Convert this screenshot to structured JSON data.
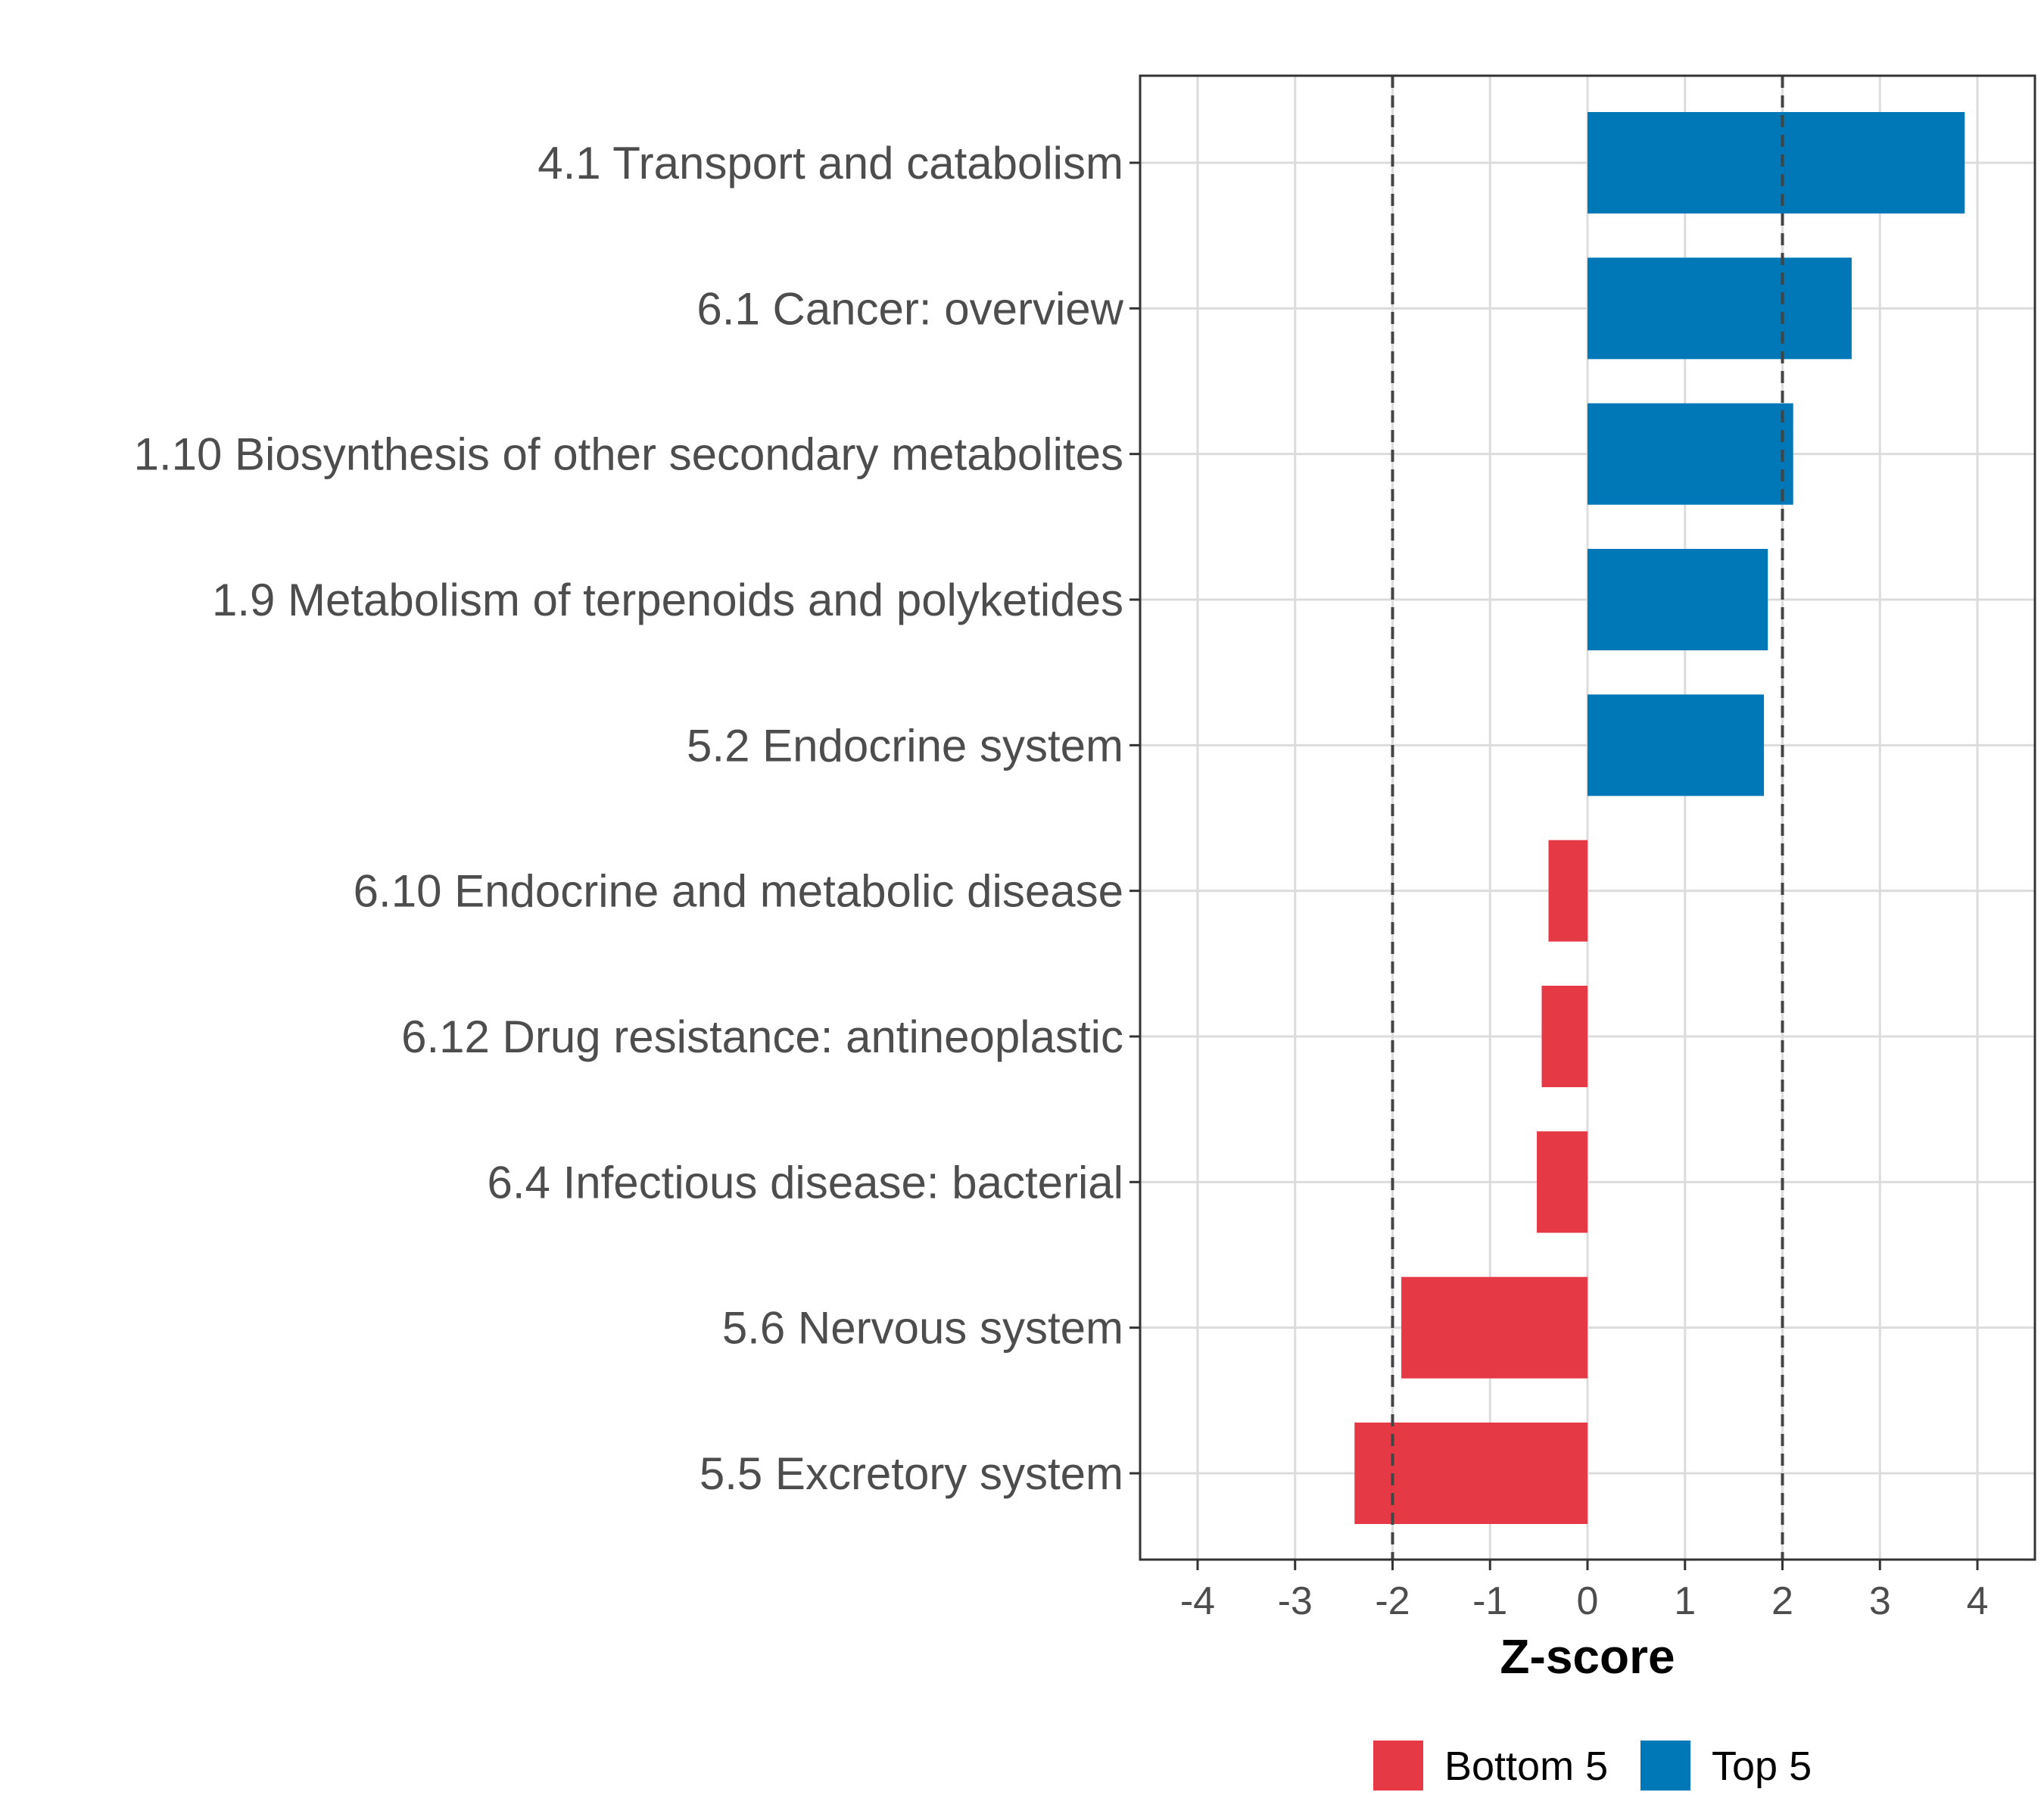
{
  "chart_data": {
    "type": "bar",
    "orientation": "horizontal",
    "title": "",
    "xlabel": "Z-score",
    "ylabel": "",
    "xlim": [
      -4.59,
      4.59
    ],
    "xticks": [
      -4,
      -3,
      -2,
      -1,
      0,
      1,
      2,
      3,
      4
    ],
    "reference_lines": [
      -2,
      2
    ],
    "grid": true,
    "legend_position": "bottom",
    "categories": [
      "4.1 Transport and catabolism",
      "6.1 Cancer: overview",
      "1.10 Biosynthesis of other secondary metabolites",
      "1.9 Metabolism of terpenoids and polyketides",
      "5.2 Endocrine system",
      "6.10 Endocrine and metabolic disease",
      "6.12 Drug resistance: antineoplastic",
      "6.4 Infectious disease: bacterial",
      "5.6 Nervous system",
      "5.5 Excretory system"
    ],
    "values": [
      3.87,
      2.71,
      2.11,
      1.85,
      1.81,
      -0.4,
      -0.47,
      -0.52,
      -1.91,
      -2.39
    ],
    "groups": [
      "Top 5",
      "Top 5",
      "Top 5",
      "Top 5",
      "Top 5",
      "Bottom 5",
      "Bottom 5",
      "Bottom 5",
      "Bottom 5",
      "Bottom 5"
    ],
    "legend": [
      {
        "label": "Bottom 5",
        "color": "#E63946"
      },
      {
        "label": "Top 5",
        "color": "#0077B6"
      }
    ]
  }
}
